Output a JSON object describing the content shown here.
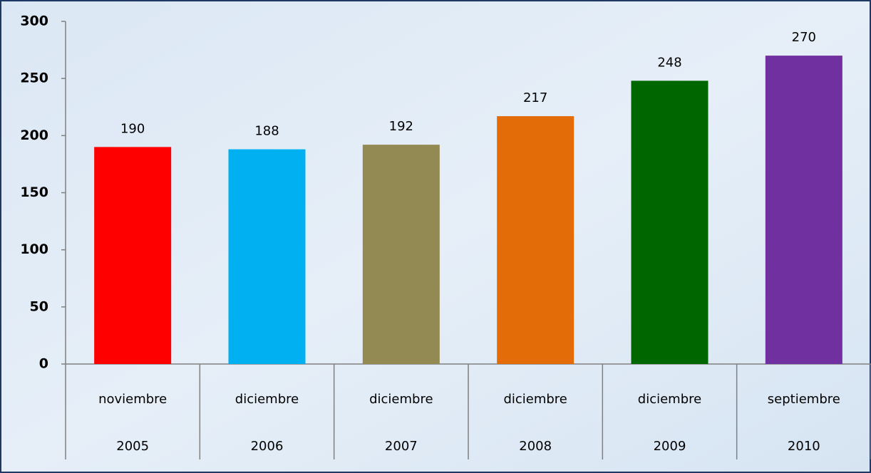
{
  "chart_data": {
    "type": "bar",
    "categories": [
      "noviembre",
      "diciembre",
      "diciembre",
      "diciembre",
      "diciembre",
      "septiembre"
    ],
    "years": [
      "2005",
      "2006",
      "2007",
      "2008",
      "2009",
      "2010"
    ],
    "values": [
      190,
      188,
      192,
      217,
      248,
      270
    ],
    "colors": [
      "#ff0000",
      "#00b0f0",
      "#938953",
      "#e36c09",
      "#006600",
      "#7030a0"
    ],
    "ylim": [
      0,
      300
    ],
    "yticks": [
      0,
      50,
      100,
      150,
      200,
      250,
      300
    ],
    "grid": false
  }
}
